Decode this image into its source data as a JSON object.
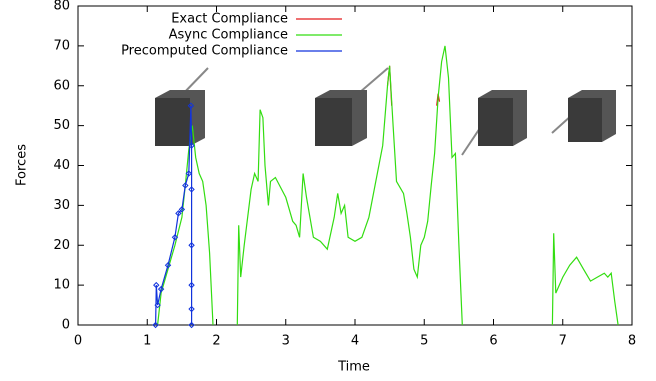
{
  "chart_data": {
    "type": "line",
    "x_label": "Time",
    "y_label": "Forces",
    "xlim": [
      0,
      8
    ],
    "xticks": [
      0,
      1,
      2,
      3,
      4,
      5,
      6,
      7,
      8
    ],
    "ylim": [
      0,
      80
    ],
    "yticks": [
      0,
      10,
      20,
      30,
      40,
      50,
      60,
      70,
      80
    ],
    "grid": false,
    "legend": "top",
    "series": [
      {
        "name": "Exact Compliance",
        "color": "#e41a1c",
        "x": [
          4.47,
          4.5,
          4.53,
          4.6,
          5.18,
          5.2,
          5.22
        ],
        "values": [
          60,
          65,
          55,
          null,
          55,
          58,
          56
        ]
      },
      {
        "name": "Async Compliance",
        "color": "#33dd11",
        "x": [
          1.15,
          1.2,
          1.3,
          1.4,
          1.5,
          1.55,
          1.6,
          1.65,
          1.7,
          1.75,
          1.8,
          1.85,
          1.9,
          1.95,
          2.1,
          2.3,
          2.32,
          2.35,
          2.4,
          2.5,
          2.55,
          2.6,
          2.63,
          2.67,
          2.7,
          2.75,
          2.78,
          2.85,
          3.0,
          3.1,
          3.15,
          3.2,
          3.25,
          3.3,
          3.4,
          3.5,
          3.6,
          3.7,
          3.75,
          3.8,
          3.85,
          3.9,
          4.0,
          4.1,
          4.2,
          4.3,
          4.4,
          4.47,
          4.5,
          4.55,
          4.6,
          4.7,
          4.75,
          4.8,
          4.85,
          4.9,
          4.95,
          5.0,
          5.05,
          5.1,
          5.15,
          5.2,
          5.25,
          5.3,
          5.35,
          5.4,
          5.45,
          5.5,
          5.55,
          6.0,
          6.85,
          6.87,
          6.9,
          7.0,
          7.1,
          7.2,
          7.3,
          7.4,
          7.5,
          7.6,
          7.65,
          7.7,
          7.75,
          7.8
        ],
        "values": [
          0,
          8,
          14,
          20,
          27,
          35,
          44,
          50,
          42,
          38,
          36,
          30,
          18,
          0,
          null,
          0,
          25,
          12,
          20,
          34,
          38,
          36,
          54,
          52,
          40,
          30,
          36,
          37,
          32,
          26,
          25,
          22,
          38,
          32,
          22,
          21,
          19,
          27,
          33,
          28,
          30,
          22,
          21,
          22,
          27,
          36,
          45,
          60,
          65,
          50,
          36,
          33,
          28,
          22,
          14,
          12,
          20,
          22,
          26,
          35,
          43,
          57,
          66,
          70,
          62,
          42,
          43,
          20,
          0,
          null,
          0,
          23,
          8,
          12,
          15,
          17,
          14,
          11,
          12,
          13,
          12,
          13,
          6,
          0
        ]
      },
      {
        "name": "Precomputed Compliance",
        "color": "#1133dd",
        "marker": "diamond",
        "x": [
          1.12,
          1.13,
          1.15,
          1.2,
          1.3,
          1.4,
          1.45,
          1.5,
          1.55,
          1.6,
          1.63,
          1.64,
          1.64,
          1.64,
          1.64,
          1.64,
          1.64
        ],
        "values": [
          0,
          10,
          5,
          9,
          15,
          22,
          28,
          29,
          35,
          38,
          55,
          45,
          34,
          20,
          10,
          4,
          0
        ]
      }
    ]
  }
}
